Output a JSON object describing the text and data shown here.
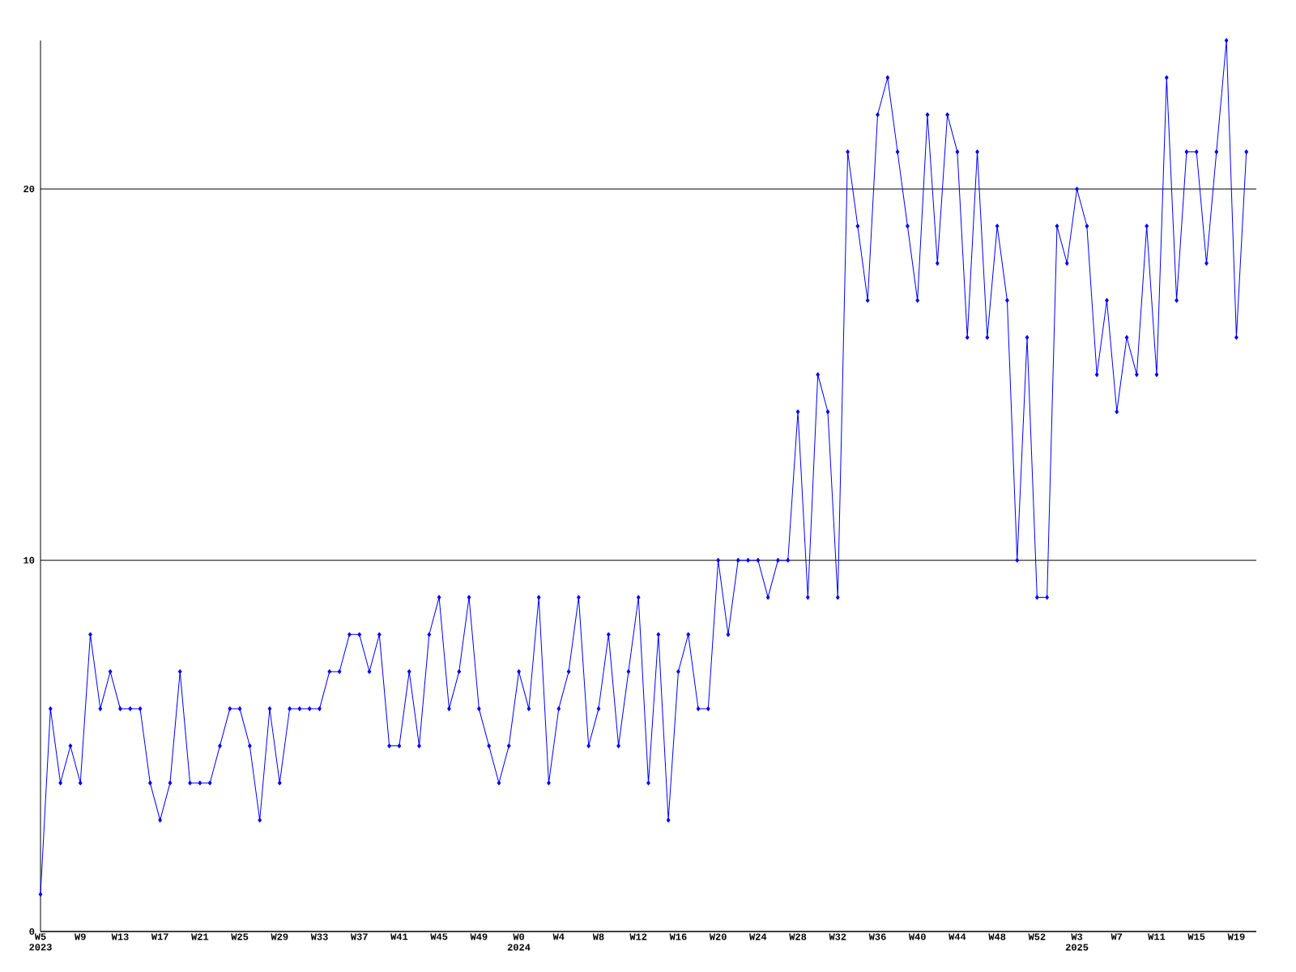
{
  "chart_data": {
    "type": "line",
    "categories": [
      "W5 2023",
      null,
      null,
      null,
      "W9",
      null,
      null,
      null,
      "W13",
      null,
      null,
      null,
      "W17",
      null,
      null,
      null,
      "W21",
      null,
      null,
      null,
      "W25",
      null,
      null,
      null,
      "W29",
      null,
      null,
      null,
      "W33",
      null,
      null,
      null,
      "W37",
      null,
      null,
      null,
      "W41",
      null,
      null,
      null,
      "W45",
      null,
      null,
      null,
      "W49",
      null,
      null,
      null,
      "W0 2024",
      null,
      null,
      null,
      "W4",
      null,
      null,
      null,
      "W8",
      null,
      null,
      null,
      "W12",
      null,
      null,
      null,
      "W16",
      null,
      null,
      null,
      "W20",
      null,
      null,
      null,
      "W24",
      null,
      null,
      null,
      "W28",
      null,
      null,
      null,
      "W32",
      null,
      null,
      null,
      "W36",
      null,
      null,
      null,
      "W40",
      null,
      null,
      null,
      "W44",
      null,
      null,
      null,
      "W48",
      null,
      null,
      null,
      "W52",
      null,
      null,
      null,
      "W3 2025",
      null,
      null,
      null,
      "W7",
      null,
      null,
      null,
      "W11",
      null,
      null,
      null,
      "W15",
      null,
      null,
      null,
      "W19",
      null
    ],
    "values": [
      1,
      6,
      4,
      5,
      4,
      8,
      6,
      7,
      6,
      6,
      6,
      4,
      3,
      4,
      7,
      4,
      4,
      4,
      5,
      6,
      6,
      5,
      3,
      6,
      4,
      6,
      6,
      6,
      6,
      7,
      7,
      8,
      8,
      7,
      8,
      5,
      5,
      7,
      5,
      8,
      9,
      6,
      7,
      9,
      6,
      5,
      4,
      5,
      7,
      6,
      9,
      4,
      6,
      7,
      9,
      5,
      6,
      8,
      5,
      7,
      9,
      4,
      8,
      3,
      7,
      8,
      6,
      6,
      10,
      8,
      10,
      10,
      10,
      9,
      10,
      10,
      14,
      9,
      15,
      14,
      9,
      21,
      19,
      17,
      22,
      23,
      21,
      19,
      17,
      22,
      18,
      22,
      21,
      16,
      21,
      16,
      19,
      17,
      10,
      16,
      9,
      9,
      19,
      18,
      20,
      19,
      15,
      17,
      14,
      16,
      15,
      19,
      15,
      23,
      17,
      21,
      21,
      18,
      21,
      24,
      16,
      21
    ],
    "color": "#0000ff",
    "marker": "diamond",
    "line_style": "solid",
    "ylim": [
      0,
      24
    ],
    "yticks": [
      0,
      10,
      20
    ],
    "grid": "y"
  }
}
